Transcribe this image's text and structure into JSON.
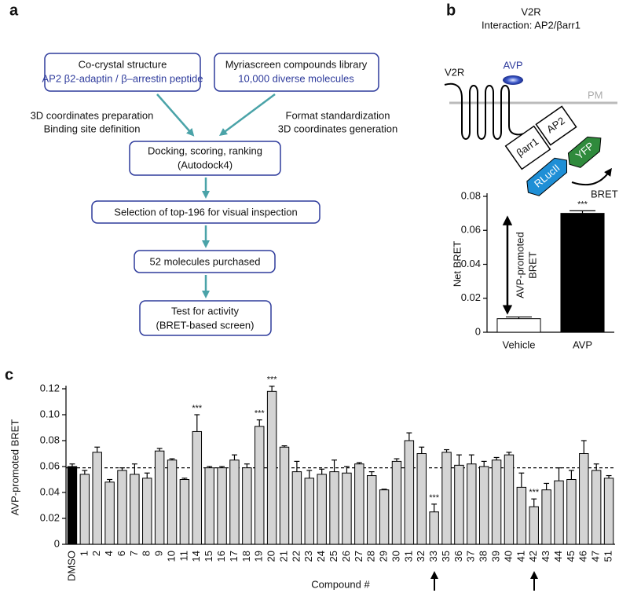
{
  "panel_labels": [
    "a",
    "b",
    "c"
  ],
  "panel_a": {
    "boxes": [
      {
        "lines": [
          "Co-crystal structure",
          "AP2 β2-adaptin / β–arrestin peptide"
        ]
      },
      {
        "lines": [
          "Myriascreen compounds library",
          "10,000 diverse molecules"
        ]
      },
      {
        "lines": [
          "Docking, scoring, ranking",
          "(Autodock4)"
        ]
      },
      {
        "lines": [
          "Selection of top-196 for visual inspection"
        ]
      },
      {
        "lines": [
          "52 molecules purchased"
        ]
      },
      {
        "lines": [
          "Test for activity",
          "(BRET-based screen)"
        ]
      }
    ],
    "side_notes": [
      [
        "3D coordinates preparation",
        "Binding site definition"
      ],
      [
        "Format standardization",
        "3D coordinates generation"
      ]
    ]
  },
  "panel_b": {
    "title": [
      "V2R",
      "Interaction: AP2/βarr1"
    ],
    "labels": {
      "receptor": "V2R",
      "ligand": "AVP",
      "membrane": "PM",
      "adaptor": "AP2",
      "arrestin": "βarr1",
      "acceptor": "YFP",
      "donor": "RLucII",
      "signal": "BRET"
    }
  },
  "chart_data": [
    {
      "type": "bar",
      "ylabel": "Net BRET",
      "categories": [
        "Vehicle",
        "AVP"
      ],
      "values": [
        0.008,
        0.07
      ],
      "errors": [
        0.001,
        0.0015
      ],
      "colors": [
        "#ffffff",
        "#000000"
      ],
      "significance": [
        null,
        "***"
      ],
      "annotation": [
        "AVP-promoted",
        "BRET"
      ],
      "ylim": [
        0,
        0.08
      ],
      "yticks": [
        0,
        0.02,
        0.04,
        0.06,
        0.08
      ]
    },
    {
      "type": "bar",
      "ylabel": "AVP-promoted BRET",
      "xlabel": "Compound #",
      "categories": [
        "DMSO",
        "1",
        "2",
        "4",
        "6",
        "7",
        "8",
        "9",
        "10",
        "11",
        "14",
        "15",
        "16",
        "17",
        "18",
        "19",
        "20",
        "21",
        "22",
        "23",
        "24",
        "25",
        "26",
        "27",
        "28",
        "29",
        "30",
        "31",
        "32",
        "33",
        "35",
        "36",
        "37",
        "38",
        "39",
        "40",
        "41",
        "42",
        "43",
        "44",
        "45",
        "46",
        "47",
        "51"
      ],
      "values": [
        0.06,
        0.054,
        0.071,
        0.048,
        0.057,
        0.054,
        0.051,
        0.072,
        0.065,
        0.05,
        0.087,
        0.059,
        0.059,
        0.065,
        0.059,
        0.091,
        0.118,
        0.075,
        0.056,
        0.051,
        0.054,
        0.056,
        0.055,
        0.062,
        0.053,
        0.042,
        0.064,
        0.08,
        0.07,
        0.025,
        0.071,
        0.061,
        0.062,
        0.06,
        0.065,
        0.069,
        0.044,
        0.029,
        0.042,
        0.049,
        0.05,
        0.07,
        0.057,
        0.051
      ],
      "errors": [
        0.002,
        0.003,
        0.004,
        0.002,
        0.002,
        0.008,
        0.004,
        0.002,
        0.001,
        0.001,
        0.013,
        0.001,
        0.001,
        0.004,
        0.003,
        0.005,
        0.004,
        0.001,
        0.008,
        0.006,
        0.004,
        0.009,
        0.005,
        0.001,
        0.003,
        0.0005,
        0.002,
        0.006,
        0.005,
        0.006,
        0.002,
        0.008,
        0.007,
        0.004,
        0.002,
        0.002,
        0.011,
        0.006,
        0.005,
        0.01,
        0.007,
        0.01,
        0.005,
        0.002
      ],
      "colors": [
        "#000000",
        "#d4d4d4",
        "#d4d4d4",
        "#d4d4d4",
        "#d4d4d4",
        "#d4d4d4",
        "#d4d4d4",
        "#d4d4d4",
        "#d4d4d4",
        "#d4d4d4",
        "#d4d4d4",
        "#d4d4d4",
        "#d4d4d4",
        "#d4d4d4",
        "#d4d4d4",
        "#d4d4d4",
        "#d4d4d4",
        "#d4d4d4",
        "#d4d4d4",
        "#d4d4d4",
        "#d4d4d4",
        "#d4d4d4",
        "#d4d4d4",
        "#d4d4d4",
        "#d4d4d4",
        "#d4d4d4",
        "#d4d4d4",
        "#d4d4d4",
        "#d4d4d4",
        "#d4d4d4",
        "#d4d4d4",
        "#d4d4d4",
        "#d4d4d4",
        "#d4d4d4",
        "#d4d4d4",
        "#d4d4d4",
        "#d4d4d4",
        "#d4d4d4",
        "#d4d4d4",
        "#d4d4d4",
        "#d4d4d4",
        "#d4d4d4",
        "#d4d4d4",
        "#d4d4d4"
      ],
      "significance": [
        null,
        null,
        null,
        null,
        null,
        null,
        null,
        null,
        null,
        null,
        "***",
        null,
        null,
        null,
        null,
        "***",
        "***",
        null,
        null,
        null,
        null,
        null,
        null,
        null,
        null,
        null,
        null,
        null,
        null,
        "***",
        null,
        null,
        null,
        null,
        null,
        null,
        null,
        "***",
        null,
        null,
        null,
        null,
        null,
        null
      ],
      "reference_line": 0.059,
      "ylim": [
        0,
        0.12
      ],
      "yticks": [
        0,
        0.02,
        0.04,
        0.06,
        0.08,
        {
          "value": 0.1,
          "label": "0.10"
        },
        0.12
      ]
    }
  ]
}
